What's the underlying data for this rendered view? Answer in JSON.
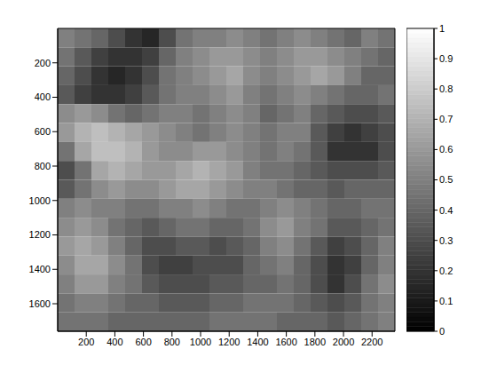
{
  "chart_data": {
    "type": "heatmap",
    "color": "gray",
    "x": [
      59,
      177,
      295,
      413,
      531,
      649,
      767,
      885,
      1003,
      1121,
      1239,
      1357,
      1475,
      1593,
      1711,
      1829,
      1947,
      2065,
      2183,
      2301
    ],
    "y": [
      55,
      165,
      275,
      385,
      495,
      605,
      715,
      825,
      935,
      1045,
      1155,
      1265,
      1375,
      1485,
      1595,
      1705
    ],
    "cells": [
      [
        0.5,
        0.45,
        0.4,
        0.3,
        0.2,
        0.15,
        0.3,
        0.45,
        0.5,
        0.5,
        0.55,
        0.5,
        0.45,
        0.5,
        0.55,
        0.5,
        0.45,
        0.4,
        0.5,
        0.45
      ],
      [
        0.45,
        0.35,
        0.25,
        0.2,
        0.2,
        0.25,
        0.4,
        0.5,
        0.55,
        0.6,
        0.6,
        0.55,
        0.5,
        0.55,
        0.6,
        0.6,
        0.55,
        0.5,
        0.45,
        0.4
      ],
      [
        0.4,
        0.3,
        0.2,
        0.15,
        0.2,
        0.3,
        0.45,
        0.5,
        0.55,
        0.6,
        0.65,
        0.55,
        0.5,
        0.55,
        0.6,
        0.65,
        0.6,
        0.5,
        0.4,
        0.4
      ],
      [
        0.35,
        0.25,
        0.2,
        0.2,
        0.25,
        0.35,
        0.45,
        0.5,
        0.5,
        0.55,
        0.6,
        0.5,
        0.45,
        0.5,
        0.55,
        0.5,
        0.45,
        0.4,
        0.4,
        0.45
      ],
      [
        0.55,
        0.6,
        0.55,
        0.45,
        0.4,
        0.45,
        0.5,
        0.5,
        0.45,
        0.5,
        0.55,
        0.5,
        0.4,
        0.45,
        0.5,
        0.4,
        0.35,
        0.3,
        0.3,
        0.35
      ],
      [
        0.6,
        0.7,
        0.75,
        0.7,
        0.65,
        0.6,
        0.55,
        0.5,
        0.45,
        0.5,
        0.55,
        0.5,
        0.45,
        0.5,
        0.5,
        0.35,
        0.25,
        0.2,
        0.25,
        0.3
      ],
      [
        0.45,
        0.65,
        0.75,
        0.75,
        0.7,
        0.6,
        0.55,
        0.55,
        0.6,
        0.6,
        0.55,
        0.5,
        0.45,
        0.5,
        0.45,
        0.35,
        0.2,
        0.2,
        0.2,
        0.3
      ],
      [
        0.3,
        0.45,
        0.65,
        0.7,
        0.65,
        0.6,
        0.6,
        0.65,
        0.7,
        0.65,
        0.6,
        0.5,
        0.45,
        0.45,
        0.4,
        0.35,
        0.3,
        0.3,
        0.3,
        0.35
      ],
      [
        0.35,
        0.45,
        0.55,
        0.6,
        0.55,
        0.55,
        0.6,
        0.65,
        0.65,
        0.6,
        0.55,
        0.5,
        0.5,
        0.45,
        0.4,
        0.4,
        0.35,
        0.4,
        0.4,
        0.4
      ],
      [
        0.5,
        0.55,
        0.5,
        0.5,
        0.45,
        0.45,
        0.5,
        0.5,
        0.55,
        0.5,
        0.45,
        0.45,
        0.5,
        0.55,
        0.5,
        0.45,
        0.4,
        0.4,
        0.45,
        0.45
      ],
      [
        0.55,
        0.6,
        0.55,
        0.45,
        0.4,
        0.35,
        0.4,
        0.45,
        0.45,
        0.4,
        0.4,
        0.45,
        0.55,
        0.6,
        0.5,
        0.45,
        0.35,
        0.35,
        0.4,
        0.45
      ],
      [
        0.6,
        0.65,
        0.6,
        0.5,
        0.4,
        0.3,
        0.3,
        0.35,
        0.35,
        0.3,
        0.35,
        0.4,
        0.5,
        0.55,
        0.45,
        0.35,
        0.25,
        0.3,
        0.4,
        0.5
      ],
      [
        0.55,
        0.65,
        0.65,
        0.55,
        0.45,
        0.3,
        0.25,
        0.25,
        0.3,
        0.3,
        0.3,
        0.4,
        0.45,
        0.5,
        0.4,
        0.3,
        0.2,
        0.25,
        0.4,
        0.5
      ],
      [
        0.5,
        0.6,
        0.6,
        0.5,
        0.45,
        0.35,
        0.3,
        0.3,
        0.3,
        0.35,
        0.35,
        0.4,
        0.4,
        0.45,
        0.4,
        0.3,
        0.2,
        0.3,
        0.45,
        0.55
      ],
      [
        0.45,
        0.5,
        0.5,
        0.45,
        0.4,
        0.4,
        0.35,
        0.35,
        0.35,
        0.4,
        0.4,
        0.45,
        0.45,
        0.45,
        0.4,
        0.35,
        0.3,
        0.35,
        0.45,
        0.5
      ],
      [
        0.45,
        0.45,
        0.45,
        0.4,
        0.4,
        0.4,
        0.4,
        0.4,
        0.4,
        0.45,
        0.45,
        0.45,
        0.45,
        0.4,
        0.4,
        0.4,
        0.35,
        0.4,
        0.45,
        0.5
      ]
    ],
    "xlim": [
      0,
      2360
    ],
    "xticks": [
      200,
      400,
      600,
      800,
      1000,
      1200,
      1400,
      1600,
      1800,
      2000,
      2200
    ],
    "ylim": [
      0,
      1760
    ],
    "yticks": [
      200,
      400,
      600,
      800,
      1000,
      1200,
      1400,
      1600
    ],
    "colorbar_lim": [
      0,
      1
    ],
    "colorbar_ticks": [
      0,
      0.1,
      0.2,
      0.3,
      0.4,
      0.5,
      0.6,
      0.7,
      0.8,
      0.9,
      1
    ]
  }
}
